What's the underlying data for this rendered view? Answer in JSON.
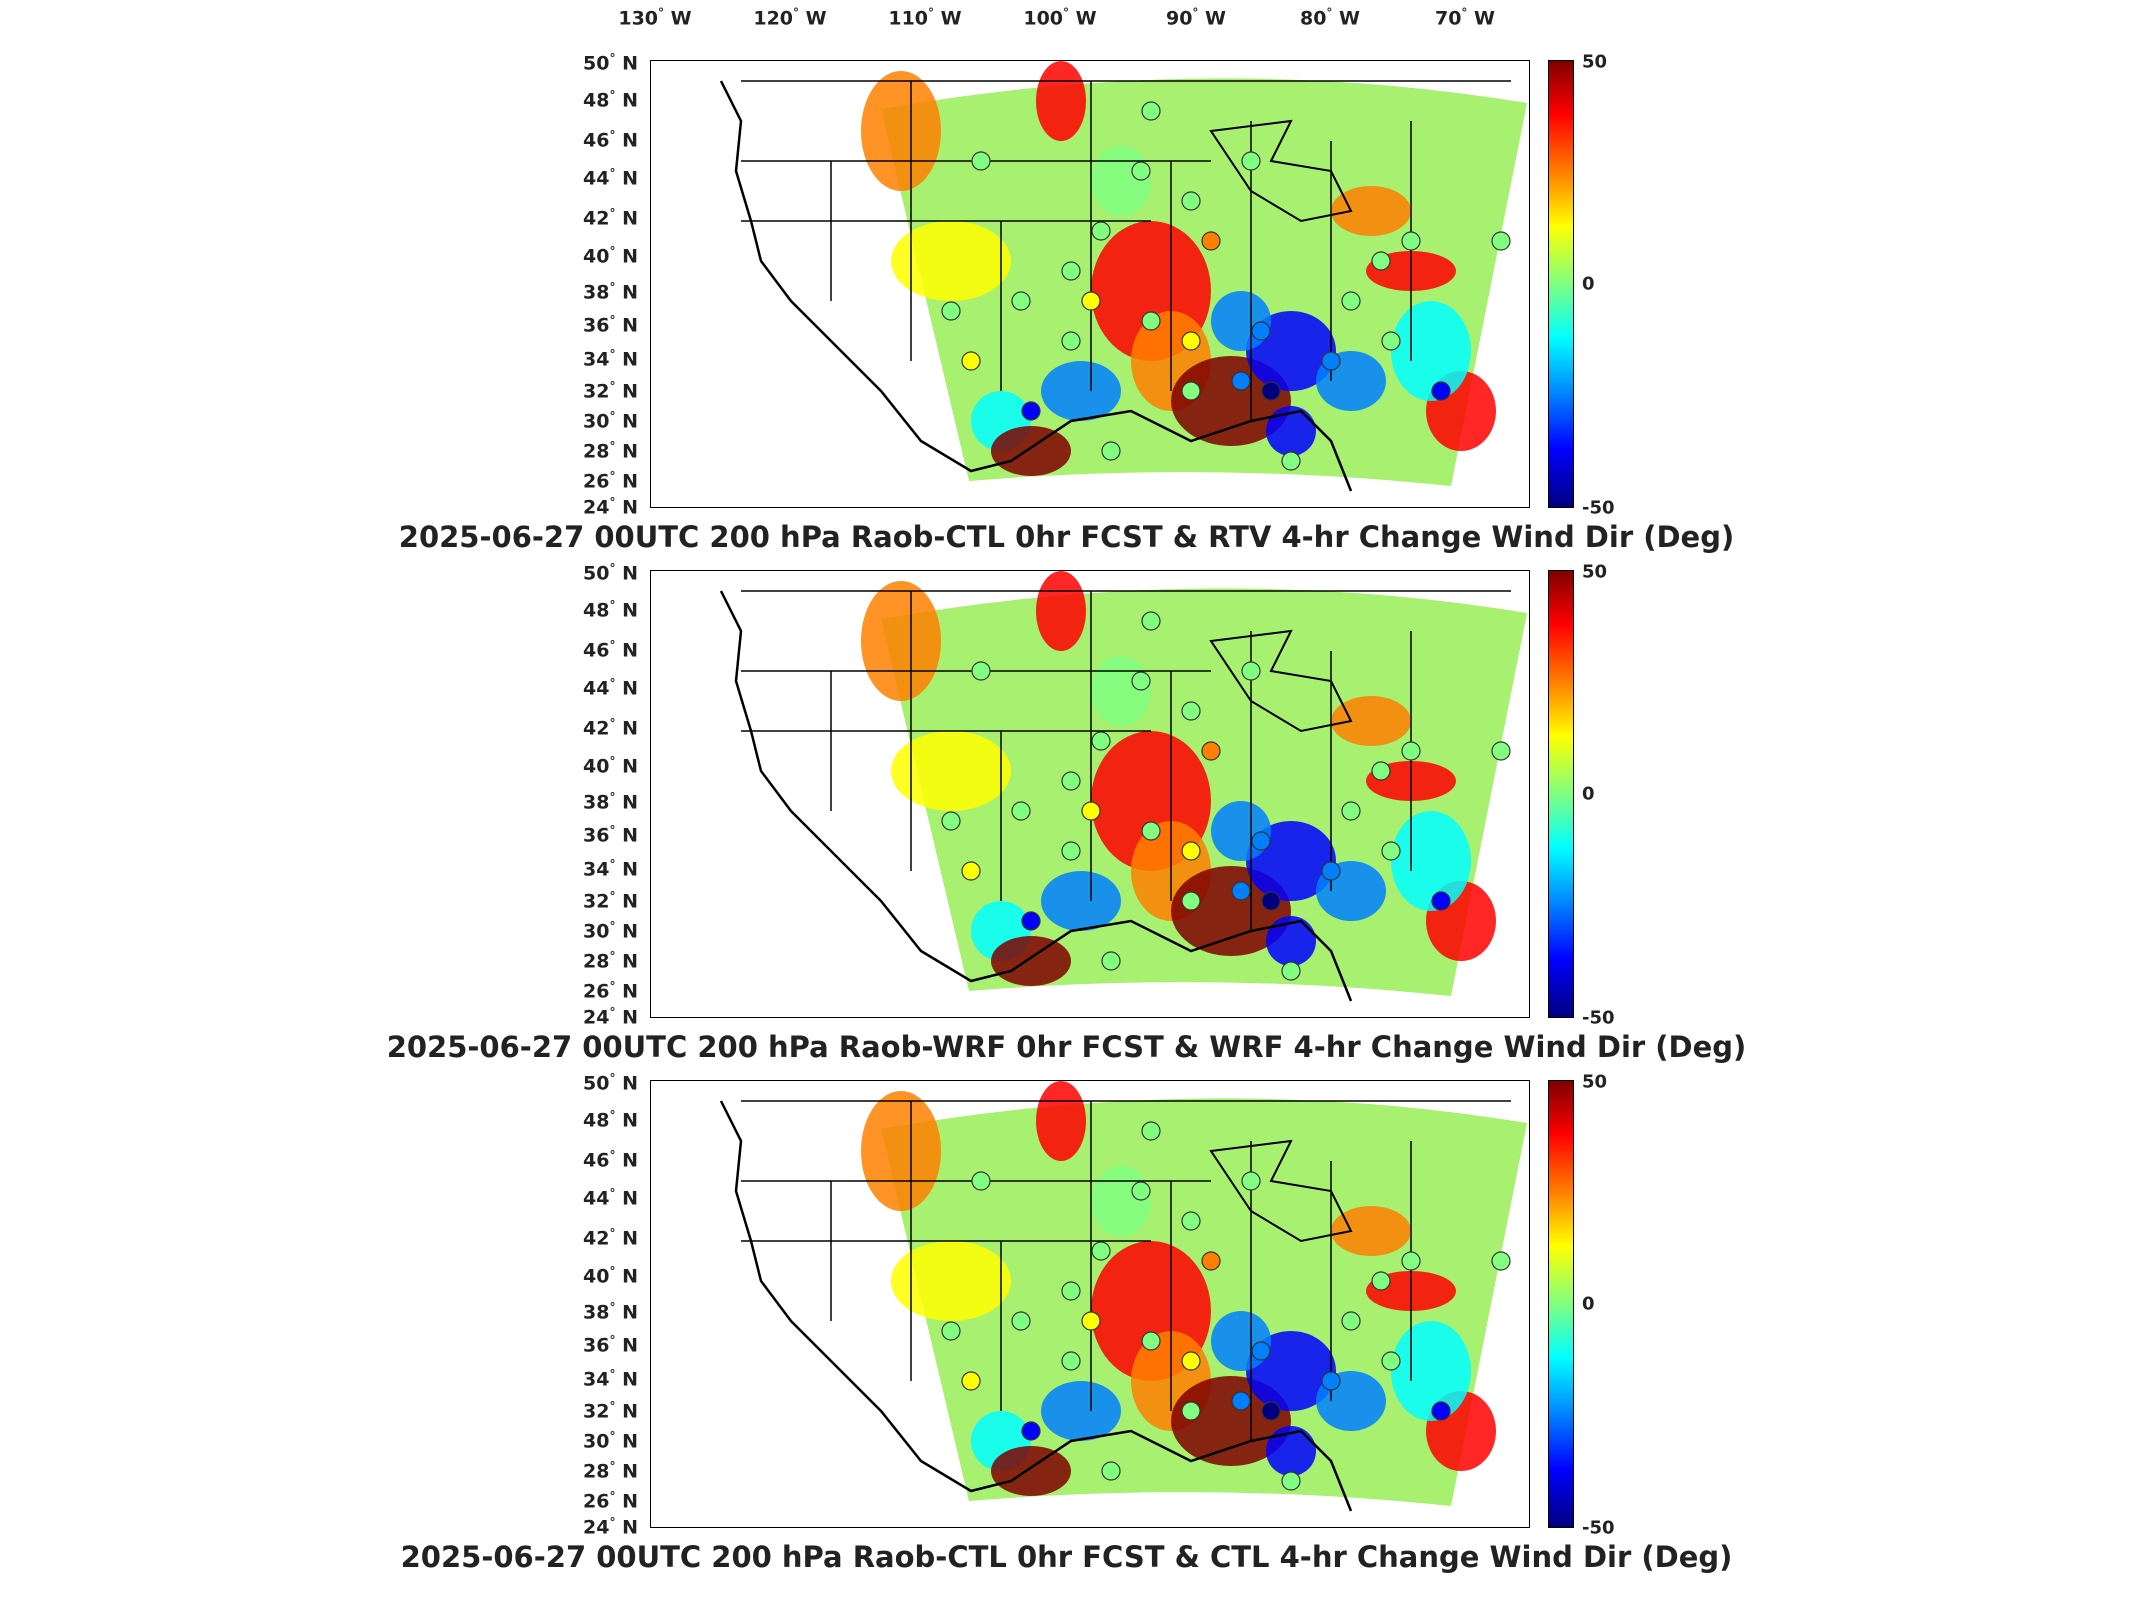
{
  "lon_labels": [
    {
      "text": "130",
      "unit": "W"
    },
    {
      "text": "120",
      "unit": "W"
    },
    {
      "text": "110",
      "unit": "W"
    },
    {
      "text": "100",
      "unit": "W"
    },
    {
      "text": "90",
      "unit": "W"
    },
    {
      "text": "80",
      "unit": "W"
    },
    {
      "text": "70",
      "unit": "W"
    }
  ],
  "lat_labels": [
    "50",
    "48",
    "46",
    "44",
    "42",
    "40",
    "38",
    "36",
    "34",
    "32",
    "30",
    "28",
    "26",
    "24"
  ],
  "lat_unit": "N",
  "colorbar": {
    "max": "50",
    "mid": "0",
    "min": "-50",
    "colors": [
      "#7f0000",
      "#ff0000",
      "#ff8000",
      "#ffff00",
      "#80ff80",
      "#00ffff",
      "#0080ff",
      "#0000ff",
      "#00007f"
    ]
  },
  "panels": [
    {
      "title": "2025-06-27 00UTC 200 hPa Raob-CTL 0hr FCST & RTV 4-hr Change Wind Dir (Deg)"
    },
    {
      "title": "2025-06-27 00UTC 200 hPa Raob-WRF 0hr FCST & WRF 4-hr Change Wind Dir (Deg)"
    },
    {
      "title": "2025-06-27 00UTC 200 hPa Raob-CTL 0hr FCST & CTL 4-hr Change Wind Dir (Deg)"
    }
  ]
}
